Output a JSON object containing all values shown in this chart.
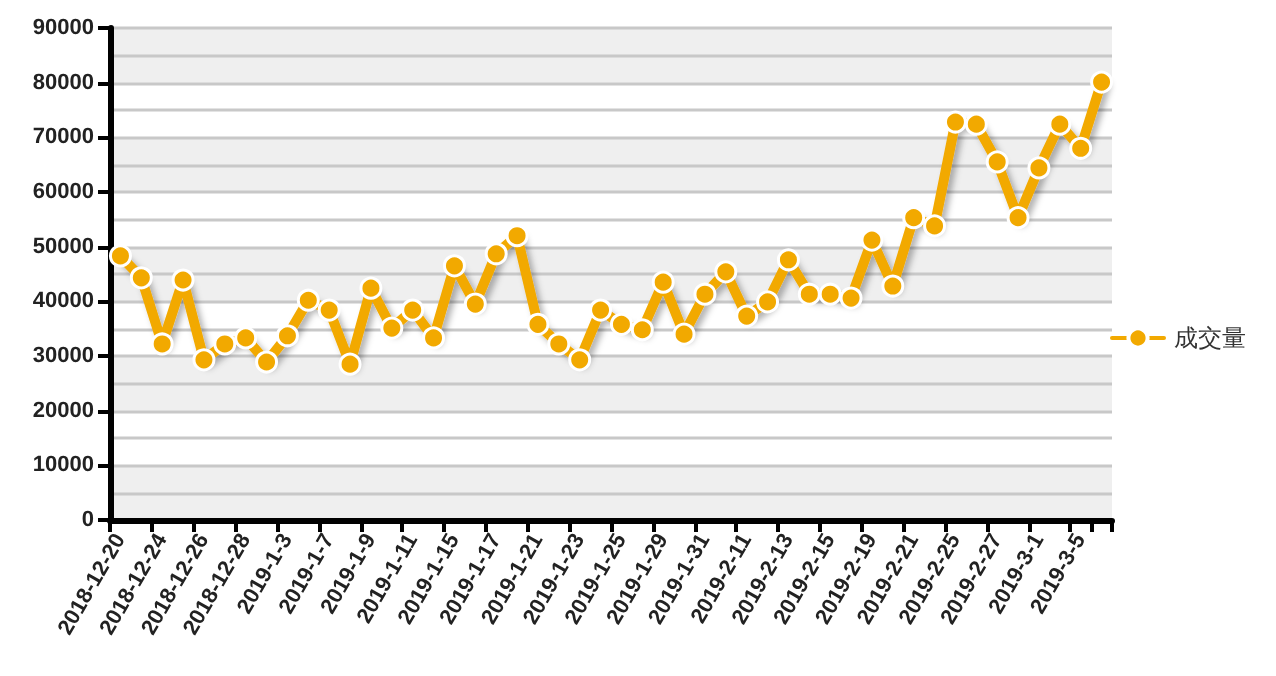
{
  "chart_data": {
    "type": "line",
    "categories": [
      "2018-12-20",
      null,
      "2018-12-24",
      null,
      "2018-12-26",
      null,
      "2018-12-28",
      null,
      "2019-1-3",
      null,
      "2019-1-7",
      null,
      "2019-1-9",
      null,
      "2019-1-11",
      null,
      "2019-1-15",
      null,
      "2019-1-17",
      null,
      "2019-1-21",
      null,
      "2019-1-23",
      null,
      "2019-1-25",
      null,
      "2019-1-29",
      null,
      "2019-1-31",
      null,
      "2019-2-11",
      null,
      "2019-2-13",
      null,
      "2019-2-15",
      null,
      "2019-2-19",
      null,
      "2019-2-21",
      null,
      "2019-2-25",
      null,
      "2019-2-27",
      null,
      "2019-3-1",
      null,
      "2019-3-5",
      null
    ],
    "series": [
      {
        "name": "成交量",
        "color": "#f2a900",
        "values": [
          48300,
          44300,
          32200,
          43900,
          29300,
          32200,
          33300,
          28900,
          33700,
          40200,
          38400,
          28500,
          42400,
          35100,
          38400,
          33300,
          46500,
          39500,
          48700,
          52000,
          35800,
          32200,
          29300,
          38400,
          35800,
          34800,
          43500,
          34000,
          41300,
          45400,
          37300,
          39900,
          47600,
          41300,
          41300,
          40600,
          51200,
          42800,
          55300,
          53800,
          72800,
          72400,
          65500,
          55300,
          64400,
          72400,
          68000,
          80100
        ]
      }
    ],
    "ylim": [
      0,
      90000
    ],
    "yticks": [
      0,
      10000,
      20000,
      30000,
      40000,
      50000,
      60000,
      70000,
      80000,
      90000
    ],
    "grid": "y",
    "legend": "right",
    "marker": "circle",
    "line_style": "solid"
  }
}
